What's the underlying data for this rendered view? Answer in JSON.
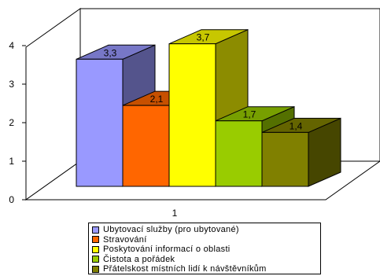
{
  "chart_data": {
    "type": "bar",
    "categories": [
      "1"
    ],
    "series": [
      {
        "name": "Ubytovací služby (pro ubytované)",
        "values": [
          3.3
        ],
        "color": "#9999ff"
      },
      {
        "name": "Stravování",
        "values": [
          2.1
        ],
        "color": "#ff6600"
      },
      {
        "name": "Poskytování informací o oblasti",
        "values": [
          3.7
        ],
        "color": "#ffff00"
      },
      {
        "name": "Čistota a pořádek",
        "values": [
          1.7
        ],
        "color": "#99cc00"
      },
      {
        "name": "Přátelskost místních lidí k návštěvníkům",
        "values": [
          1.4
        ],
        "color": "#808000"
      }
    ],
    "data_labels": [
      "3,3",
      "2,1",
      "3,7",
      "1,7",
      "1,4"
    ],
    "y_ticks": [
      "0",
      "1",
      "2",
      "3",
      "4"
    ],
    "ylim": [
      0,
      4
    ],
    "grid": false,
    "legend_position": "bottom",
    "style": "3d-column"
  }
}
